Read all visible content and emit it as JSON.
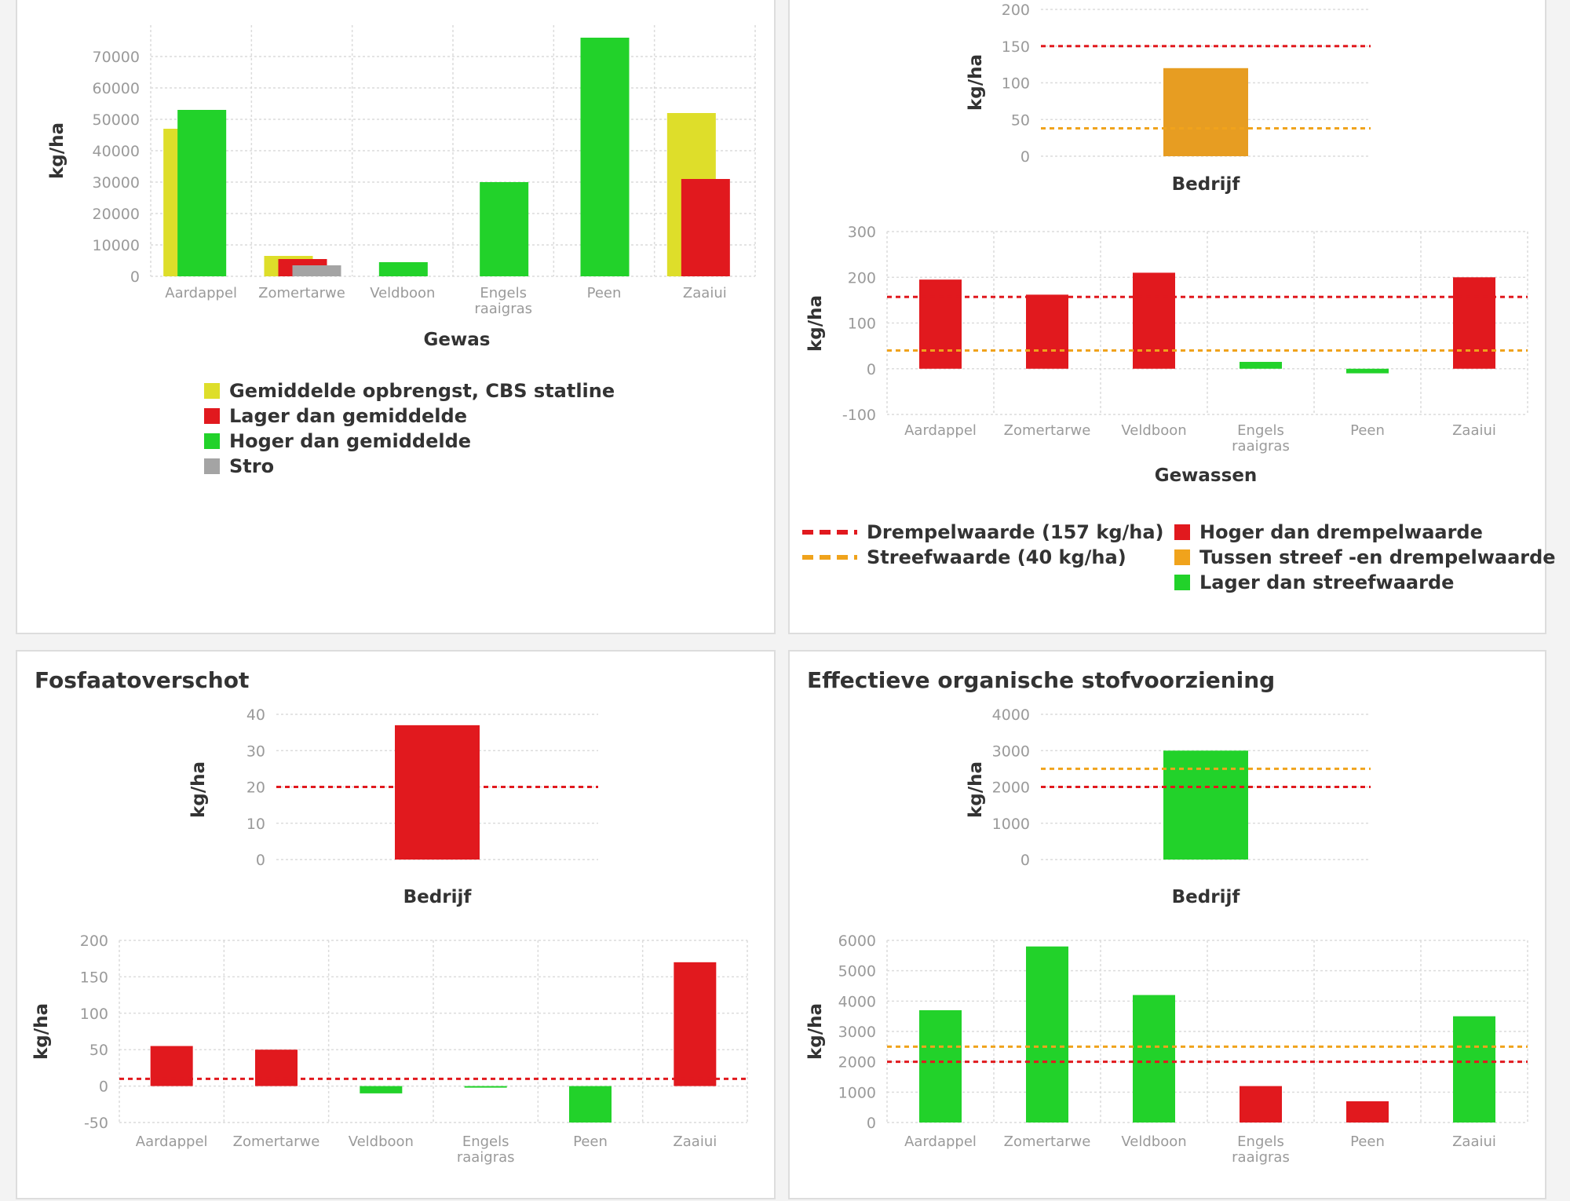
{
  "colors": {
    "yellow": "#dede2a",
    "red": "#e1191e",
    "green": "#22d22a",
    "grey": "#a4a4a4",
    "orange": "#e79d22",
    "threshold": "#e1191e",
    "target": "#f0a31c",
    "grid": "#dcdcdc"
  },
  "panels": {
    "p3": {
      "title": "Fosfaatoverschot"
    },
    "p4": {
      "title": "Effectieve organische stofvoorziening"
    }
  },
  "legends": {
    "yield": [
      {
        "label": "Gemiddelde opbrengst, CBS statline",
        "color": "#dede2a"
      },
      {
        "label": "Lager dan gemiddelde",
        "color": "#e1191e"
      },
      {
        "label": "Hoger dan gemiddelde",
        "color": "#22d22a"
      },
      {
        "label": "Stro",
        "color": "#a4a4a4"
      }
    ],
    "nitrogen_lines": [
      {
        "label": "Drempelwaarde (157 kg/ha)",
        "color": "#e1191e"
      },
      {
        "label": "Streefwaarde (40 kg/ha)",
        "color": "#f0a31c"
      }
    ],
    "nitrogen_boxes": [
      {
        "label": "Hoger dan drempelwaarde",
        "color": "#e1191e"
      },
      {
        "label": "Tussen streef -en drempelwaarde",
        "color": "#f0a31c"
      },
      {
        "label": "Lager dan streefwaarde",
        "color": "#22d22a"
      }
    ]
  },
  "chart_data": [
    {
      "id": "yield",
      "type": "bar",
      "xlabel": "Gewas",
      "ylabel": "kg/ha",
      "ylim": [
        0,
        80000
      ],
      "yticks": [
        "0",
        "10000",
        "20000",
        "30000",
        "40000",
        "50000",
        "60000",
        "70000"
      ],
      "categories": [
        "Aardappel",
        "Zomertarwe",
        "Veldboon",
        "Engels raaigras",
        "Peen",
        "Zaaiui"
      ],
      "series": [
        {
          "name": "Gemiddelde opbrengst, CBS statline",
          "values": [
            47000,
            6500,
            null,
            null,
            null,
            52000
          ]
        },
        {
          "name": "Gewas",
          "values": [
            53000,
            5500,
            4500,
            30000,
            76000,
            31000
          ],
          "colors": [
            "#22d22a",
            "#e1191e",
            "#22d22a",
            "#22d22a",
            "#22d22a",
            "#e1191e"
          ]
        },
        {
          "name": "Stro",
          "values": [
            null,
            3500,
            null,
            null,
            null,
            null
          ]
        }
      ],
      "grid": true,
      "legend": "bottom"
    },
    {
      "id": "n_farm",
      "type": "bar",
      "xlabel": "Bedrijf",
      "ylabel": "kg/ha",
      "ylim": [
        0,
        200
      ],
      "yticks": [
        "0",
        "50",
        "100",
        "150",
        "200"
      ],
      "categories": [
        ""
      ],
      "values": [
        120
      ],
      "colors": [
        "#e79d22"
      ],
      "threshold": 150,
      "target": 38
    },
    {
      "id": "n_crops",
      "type": "bar",
      "xlabel": "Gewassen",
      "ylabel": "kg/ha",
      "ylim": [
        -100,
        300
      ],
      "yticks": [
        "-100",
        "0",
        "100",
        "200",
        "300"
      ],
      "categories": [
        "Aardappel",
        "Zomertarwe",
        "Veldboon",
        "Engels raaigras",
        "Peen",
        "Zaaiui"
      ],
      "values": [
        195,
        162,
        210,
        15,
        -10,
        200
      ],
      "colors": [
        "#e1191e",
        "#e1191e",
        "#e1191e",
        "#22d22a",
        "#22d22a",
        "#e1191e"
      ],
      "threshold": 157,
      "target": 40
    },
    {
      "id": "p_farm",
      "type": "bar",
      "xlabel": "Bedrijf",
      "ylabel": "kg/ha",
      "ylim": [
        0,
        40
      ],
      "yticks": [
        "0",
        "10",
        "20",
        "30",
        "40"
      ],
      "categories": [
        ""
      ],
      "values": [
        37
      ],
      "colors": [
        "#e1191e"
      ],
      "threshold": 20
    },
    {
      "id": "p_crops",
      "type": "bar",
      "ylabel": "kg/ha",
      "ylim": [
        -50,
        200
      ],
      "yticks": [
        "-50",
        "0",
        "50",
        "100",
        "150",
        "200"
      ],
      "categories": [
        "Aardappel",
        "Zomertarwe",
        "Veldboon",
        "Engels raaigras",
        "Peen",
        "Zaaiui"
      ],
      "values": [
        55,
        50,
        -10,
        0,
        -50,
        170
      ],
      "colors": [
        "#e1191e",
        "#e1191e",
        "#22d22a",
        "#22d22a",
        "#22d22a",
        "#e1191e"
      ],
      "threshold": 10
    },
    {
      "id": "os_farm",
      "type": "bar",
      "xlabel": "Bedrijf",
      "ylabel": "kg/ha",
      "ylim": [
        0,
        4000
      ],
      "yticks": [
        "0",
        "1000",
        "2000",
        "3000",
        "4000"
      ],
      "categories": [
        ""
      ],
      "values": [
        3000
      ],
      "colors": [
        "#22d22a"
      ],
      "threshold": 2000,
      "target": 2500
    },
    {
      "id": "os_crops",
      "type": "bar",
      "ylabel": "kg/ha",
      "ylim": [
        0,
        6000
      ],
      "yticks": [
        "0",
        "1000",
        "2000",
        "3000",
        "4000",
        "5000",
        "6000"
      ],
      "categories": [
        "Aardappel",
        "Zomertarwe",
        "Veldboon",
        "Engels raaigras",
        "Peen",
        "Zaaiui"
      ],
      "values": [
        3700,
        5800,
        4200,
        1200,
        700,
        3500
      ],
      "colors": [
        "#22d22a",
        "#22d22a",
        "#22d22a",
        "#e1191e",
        "#e1191e",
        "#22d22a"
      ],
      "threshold": 2000,
      "target": 2500
    }
  ]
}
